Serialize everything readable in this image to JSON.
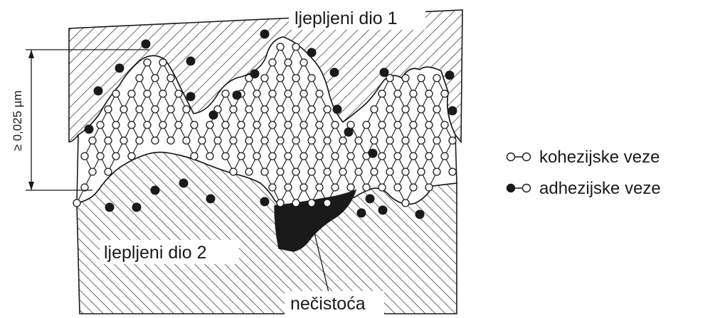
{
  "labels": {
    "part1": "ljepljeni dio 1",
    "part2": "ljepljeni dio 2",
    "impurity": "nečistoća",
    "thickness": "≥ 0,025 µm"
  },
  "legend": {
    "cohesive": "kohezijske veze",
    "adhesive": "adhezijske veze"
  },
  "colors": {
    "ink": "#1a1a1a",
    "background": "#ffffff"
  }
}
